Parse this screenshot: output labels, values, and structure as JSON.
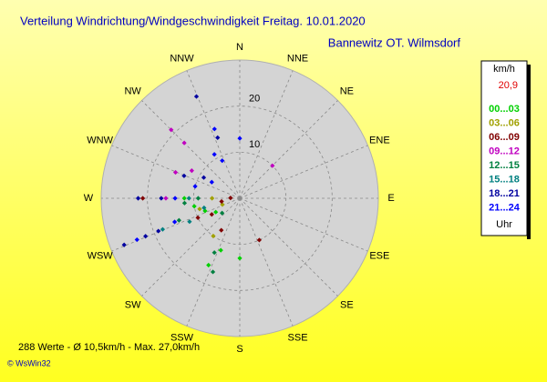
{
  "chart_data": {
    "type": "polar-scatter",
    "title": "Verteilung Windrichtung/Windgeschwindigkeit  Freitag. 10.01.2020",
    "subtitle": "Bannewitz OT. Wilmsdorf",
    "directions": [
      "N",
      "NNE",
      "NE",
      "ENE",
      "E",
      "ESE",
      "SE",
      "SSE",
      "S",
      "SSW",
      "SW",
      "WSW",
      "W",
      "WNW",
      "NW",
      "NNW"
    ],
    "rlim": [
      0,
      30
    ],
    "rticks": [
      10,
      20
    ],
    "legend_title": "km/h",
    "legend_value": {
      "value": 20.9,
      "label": "20,9"
    },
    "legend_footer": "Uhr",
    "series": [
      {
        "name": "00...03",
        "color": "#00d000",
        "direction": [
          180,
          205,
          200,
          250,
          260,
          270,
          240
        ],
        "values": [
          13,
          16,
          12,
          8,
          10,
          12,
          6
        ]
      },
      {
        "name": "03...06",
        "color": "#a0a000",
        "direction": [
          270,
          255,
          215,
          250
        ],
        "values": [
          6,
          9,
          10,
          4
        ]
      },
      {
        "name": "06...09",
        "color": "#800000",
        "direction": [
          270,
          245,
          240,
          155,
          210,
          260,
          272
        ],
        "values": [
          21,
          10,
          7,
          10,
          8,
          4,
          2
        ]
      },
      {
        "name": "09...12",
        "color": "#c000c0",
        "direction": [
          315,
          315,
          45,
          292,
          270,
          300
        ],
        "values": [
          21,
          17,
          10,
          15,
          16,
          12
        ]
      },
      {
        "name": "12...15",
        "color": "#008040",
        "direction": [
          250,
          265,
          270,
          230,
          205,
          200
        ],
        "values": [
          14,
          12,
          9,
          5,
          13,
          17
        ]
      },
      {
        "name": "15...18",
        "color": "#008080",
        "direction": [
          248,
          270,
          255,
          245
        ],
        "values": [
          18,
          11,
          8,
          12
        ]
      },
      {
        "name": "18...21",
        "color": "#0000a0",
        "direction": [
          248,
          248,
          248,
          270,
          270,
          337,
          340,
          292,
          300
        ],
        "values": [
          27,
          22,
          19,
          22,
          17,
          24,
          14,
          13,
          9
        ]
      },
      {
        "name": "21...24",
        "color": "#0000ff",
        "direction": [
          0,
          340,
          330,
          335,
          300,
          250,
          270,
          248,
          285
        ],
        "values": [
          13,
          16,
          11,
          9,
          7,
          15,
          14,
          24,
          10
        ]
      }
    ],
    "footer": "288 Werte  -  Ø 10,5km/h  -  Max. 27,0km/h",
    "copyright": "© WsWin32"
  }
}
